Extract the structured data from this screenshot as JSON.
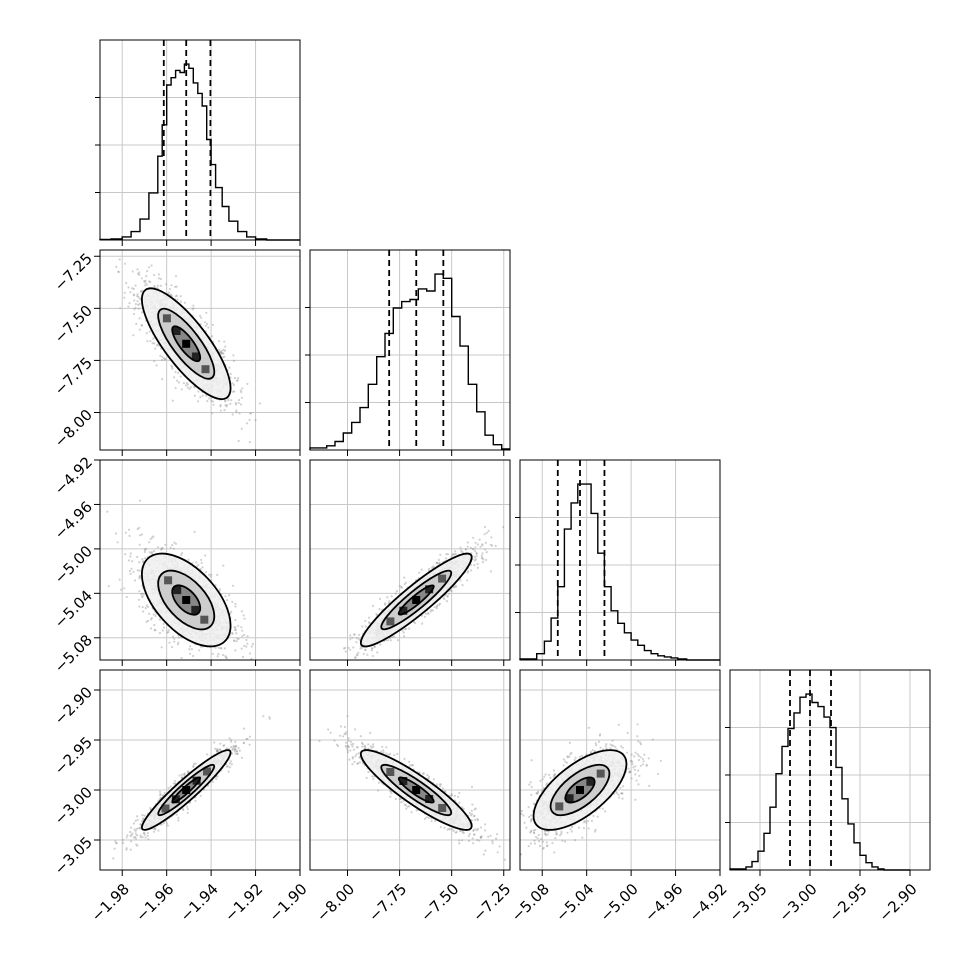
{
  "chart_data": {
    "type": "corner",
    "grid": true,
    "colors": {
      "line": "#000000",
      "grid": "#c8c8c8",
      "scatter": "#9a9a9a",
      "fill_dark": "#000000",
      "fill_mid": "#555555",
      "fill_light": "#d8d8d8"
    },
    "params": [
      {
        "range": [
          -1.99,
          -1.9
        ],
        "ticks": [
          -1.98,
          -1.96,
          -1.94,
          -1.92,
          -1.9
        ],
        "tick_labels": [
          "−1.98",
          "−1.96",
          "−1.94",
          "−1.92",
          "−1.90"
        ],
        "quantiles": [
          -1.9613,
          -1.9512,
          -1.9403
        ]
      },
      {
        "range": [
          -8.18,
          -7.22
        ],
        "ticks": [
          -8.0,
          -7.75,
          -7.5,
          -7.25
        ],
        "tick_labels": [
          "−8.00",
          "−7.75",
          "−7.50",
          "−7.25"
        ],
        "quantiles": [
          -7.8,
          -7.67,
          -7.54
        ]
      },
      {
        "range": [
          -5.1,
          -4.92
        ],
        "ticks": [
          -5.08,
          -5.04,
          -5.0,
          -4.96,
          -4.92
        ],
        "tick_labels": [
          "−5.08",
          "−5.04",
          "−5.00",
          "−4.96",
          "−4.92"
        ],
        "quantiles": [
          -5.066,
          -5.046,
          -5.024
        ]
      },
      {
        "range": [
          -3.08,
          -2.88
        ],
        "ticks": [
          -3.05,
          -3.0,
          -2.95,
          -2.9
        ],
        "tick_labels": [
          "−3.05",
          "−3.00",
          "−2.95",
          "−2.90"
        ],
        "quantiles": [
          -3.02,
          -3.0,
          -2.979
        ]
      }
    ],
    "histograms": [
      {
        "param": 0,
        "edges": [
          -1.99,
          -1.985,
          -1.98,
          -1.976,
          -1.972,
          -1.968,
          -1.964,
          -1.962,
          -1.96,
          -1.958,
          -1.956,
          -1.954,
          -1.952,
          -1.95,
          -1.948,
          -1.946,
          -1.944,
          -1.942,
          -1.94,
          -1.938,
          -1.935,
          -1.932,
          -1.928,
          -1.924,
          -1.92,
          -1.915,
          -1.9
        ],
        "counts": [
          0.5,
          1,
          3,
          8,
          20,
          45,
          80,
          110,
          148,
          155,
          162,
          160,
          168,
          164,
          150,
          140,
          128,
          96,
          72,
          50,
          32,
          18,
          8,
          3,
          1,
          0
        ]
      },
      {
        "param": 1,
        "edges": [
          -8.18,
          -8.1,
          -8.06,
          -8.02,
          -7.98,
          -7.94,
          -7.9,
          -7.86,
          -7.82,
          -7.78,
          -7.74,
          -7.7,
          -7.66,
          -7.62,
          -7.58,
          -7.54,
          -7.5,
          -7.46,
          -7.42,
          -7.38,
          -7.34,
          -7.3,
          -7.26,
          -7.22
        ],
        "counts": [
          2,
          4,
          8,
          16,
          26,
          40,
          62,
          88,
          110,
          134,
          140,
          142,
          152,
          150,
          166,
          162,
          126,
          98,
          62,
          36,
          14,
          5,
          1
        ]
      },
      {
        "param": 2,
        "edges": [
          -5.1,
          -5.085,
          -5.078,
          -5.072,
          -5.066,
          -5.06,
          -5.054,
          -5.048,
          -5.042,
          -5.036,
          -5.03,
          -5.024,
          -5.018,
          -5.012,
          -5.006,
          -5.0,
          -4.994,
          -4.988,
          -4.982,
          -4.976,
          -4.97,
          -4.964,
          -4.958,
          -4.95,
          -4.92
        ],
        "counts": [
          1,
          6,
          18,
          40,
          70,
          125,
          150,
          168,
          168,
          140,
          102,
          70,
          47,
          35,
          26,
          19,
          14,
          9,
          6,
          4,
          3,
          2,
          1,
          0
        ]
      },
      {
        "param": 3,
        "edges": [
          -3.08,
          -3.064,
          -3.058,
          -3.052,
          -3.046,
          -3.04,
          -3.034,
          -3.028,
          -3.022,
          -3.016,
          -3.01,
          -3.004,
          -2.998,
          -2.992,
          -2.986,
          -2.98,
          -2.974,
          -2.968,
          -2.962,
          -2.956,
          -2.95,
          -2.944,
          -2.938,
          -2.932,
          -2.926,
          -2.9
        ],
        "counts": [
          1,
          3,
          8,
          18,
          35,
          60,
          92,
          118,
          135,
          150,
          165,
          168,
          160,
          156,
          146,
          136,
          98,
          68,
          44,
          26,
          14,
          7,
          3,
          1,
          0
        ]
      }
    ],
    "pairs": [
      {
        "x": 0,
        "y": 1,
        "mean": [
          -1.9512,
          -7.67
        ],
        "sd": [
          0.0105,
          0.14
        ],
        "corr": -0.8
      },
      {
        "x": 0,
        "y": 2,
        "mean": [
          -1.9512,
          -5.046
        ],
        "sd": [
          0.0105,
          0.022
        ],
        "corr": -0.55
      },
      {
        "x": 1,
        "y": 2,
        "mean": [
          -7.67,
          -5.046
        ],
        "sd": [
          0.14,
          0.022
        ],
        "corr": 0.92
      },
      {
        "x": 0,
        "y": 3,
        "mean": [
          -1.9512,
          -3.0
        ],
        "sd": [
          0.0105,
          0.021
        ],
        "corr": 0.94
      },
      {
        "x": 1,
        "y": 3,
        "mean": [
          -7.67,
          -3.0
        ],
        "sd": [
          0.14,
          0.021
        ],
        "corr": -0.9
      },
      {
        "x": 2,
        "y": 3,
        "mean": [
          -5.046,
          -3.0
        ],
        "sd": [
          0.022,
          0.021
        ],
        "corr": 0.65
      }
    ],
    "contour_levels_sigma": [
      0.6,
      1.2,
      1.9
    ]
  }
}
